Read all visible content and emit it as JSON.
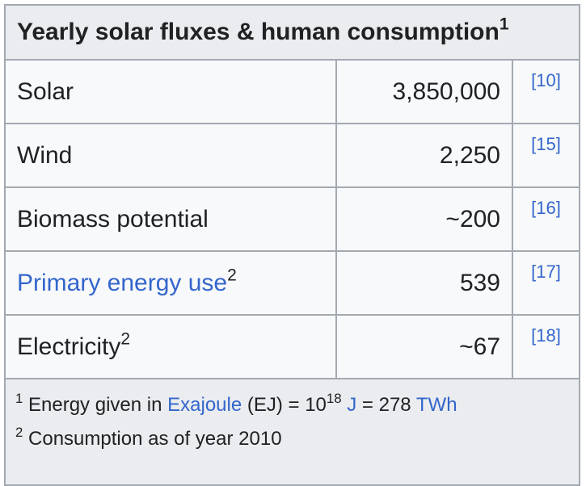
{
  "table": {
    "title": "Yearly solar fluxes & human consumption",
    "title_note": "1",
    "rows": [
      {
        "label": "Solar",
        "value": "3,850,000",
        "ref": "[10]"
      },
      {
        "label": "Wind",
        "value": "2,250",
        "ref": "[15]"
      },
      {
        "label": "Biomass potential",
        "value": "~200",
        "ref": "[16]"
      },
      {
        "label": "Primary energy use",
        "label_note": "2",
        "value": "539",
        "ref": "[17]"
      },
      {
        "label": "Electricity",
        "label_note": "2",
        "value": "~67",
        "ref": "[18]"
      }
    ],
    "footnotes": [
      {
        "mark": "1",
        "parts": [
          "Energy given in",
          "Exajoule",
          "(EJ) = 10",
          "18",
          "J",
          "= 278",
          "TWh"
        ]
      },
      {
        "mark": "2",
        "parts": [
          "Consumption as of year 2010"
        ]
      }
    ]
  }
}
